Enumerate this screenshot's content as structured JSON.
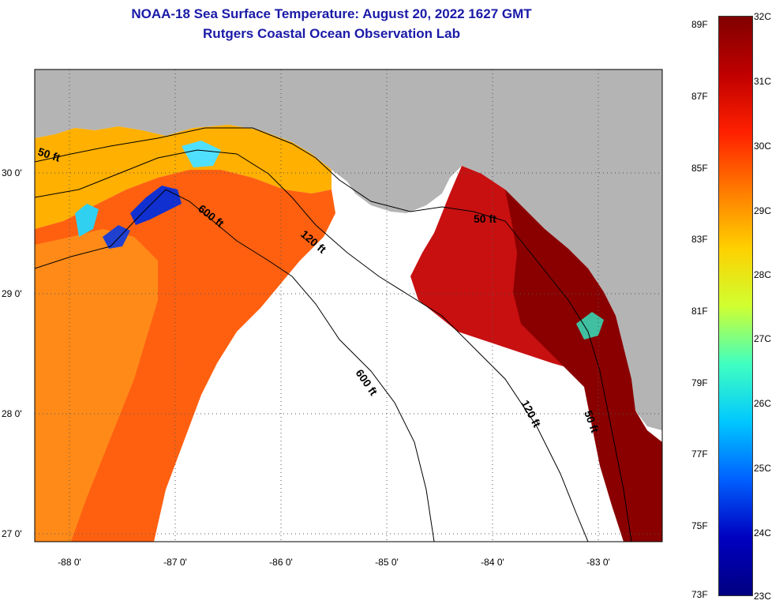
{
  "header": {
    "title_line1": "NOAA-18 Sea Surface Temperature:  August 20, 2022 1627 GMT",
    "title_line2": "Rutgers Coastal Ocean Observation Lab"
  },
  "axes": {
    "lat_labels": [
      "30 0'",
      "29 0'",
      "28 0'",
      "27 0'"
    ],
    "lon_labels": [
      "-88 0'",
      "-87 0'",
      "-86 0'",
      "-85 0'",
      "-84 0'",
      "-83 0'"
    ]
  },
  "contours": {
    "label_50": "50 ft",
    "label_120": "120 ft",
    "label_600": "600 ft"
  },
  "colorbar": {
    "fahrenheit": [
      "89F",
      "87F",
      "85F",
      "83F",
      "81F",
      "79F",
      "77F",
      "75F",
      "73F"
    ],
    "celsius": [
      "32C",
      "31C",
      "30C",
      "29C",
      "28C",
      "27C",
      "26C",
      "25C",
      "24C",
      "23C"
    ],
    "colors": [
      "#800000",
      "#c00000",
      "#ff2000",
      "#ff7a00",
      "#ffd000",
      "#d0ff30",
      "#40ffc0",
      "#00c8ff",
      "#0060ff",
      "#0000c0",
      "#000080"
    ]
  },
  "colors": {
    "land": "#b4b4b4",
    "ocean_no_data": "#ffffff",
    "title": "#1a1aa8"
  }
}
